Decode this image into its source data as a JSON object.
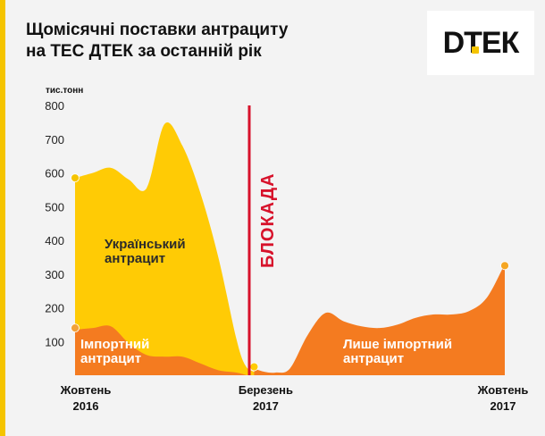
{
  "header": {
    "title_line1": "Щомісячні поставки антрациту",
    "title_line2": "на ТЕС ДТЕК за останній рік"
  },
  "logo": {
    "text": "DТЕК"
  },
  "colors": {
    "background": "#f3f3f3",
    "accent_bar": "#f5c400",
    "ukrainian_series": "#ffcb05",
    "import_series": "#f47b20",
    "import_only_series": "#f47b20",
    "blockade_line": "#d7122b",
    "label_dark": "#2b2b2b",
    "label_light": "#ffffff"
  },
  "chart_data": {
    "type": "area",
    "title": "Щомісячні поставки антрациту на ТЕС ДТЕК за останній рік",
    "ylabel": "тис.тонн",
    "ylim": [
      0,
      800
    ],
    "yticks": [
      "100",
      "200",
      "300",
      "400",
      "500",
      "600",
      "700",
      "800"
    ],
    "xticks": [
      {
        "month": 0,
        "line1": "Жовтень",
        "line2": "2016"
      },
      {
        "month": 5,
        "line1": "Березень",
        "line2": "2017"
      },
      {
        "month": 12,
        "line1": "Жовтень",
        "line2": "2017"
      }
    ],
    "grid": false,
    "series": [
      {
        "name": "Український антрацит",
        "x": [
          0,
          0.5,
          1,
          1.5,
          2,
          2.5,
          3,
          3.5,
          4,
          4.5,
          4.75,
          5,
          5.25
        ],
        "values": [
          585,
          600,
          615,
          580,
          555,
          745,
          680,
          540,
          350,
          110,
          30,
          10,
          0
        ]
      },
      {
        "name": "Імпортний антрацит",
        "x": [
          0,
          0.5,
          1,
          1.5,
          2,
          2.5,
          3,
          3.5,
          4,
          4.5,
          4.8
        ],
        "values": [
          135,
          140,
          145,
          95,
          60,
          55,
          55,
          35,
          15,
          8,
          0
        ]
      },
      {
        "name": "Лише імпортний антрацит",
        "x": [
          5,
          5.3,
          5.6,
          6,
          6.5,
          7,
          7.5,
          8,
          8.5,
          9,
          9.5,
          10,
          10.5,
          11,
          11.5,
          12
        ],
        "values": [
          20,
          10,
          8,
          20,
          120,
          185,
          160,
          145,
          140,
          150,
          170,
          180,
          180,
          190,
          230,
          330
        ]
      }
    ],
    "markers": [
      {
        "series": "Український антрацит",
        "x": 0,
        "y": 585
      },
      {
        "series": "Імпортний антрацит",
        "x": 0,
        "y": 140
      },
      {
        "series": "Лише імпортний антрацит",
        "x": 5,
        "y": 25
      },
      {
        "series": "Лише імпортний антрацит",
        "x": 12,
        "y": 325
      }
    ],
    "annotations": [
      {
        "kind": "vertical-line",
        "x": 4.85,
        "label": "БЛОКАДА"
      }
    ],
    "series_labels": [
      {
        "series": "Український антрацит",
        "line1": "Український",
        "line2": "антрацит"
      },
      {
        "series": "Імпортний антрацит",
        "line1": "Імпортний",
        "line2": "антрацит"
      },
      {
        "series": "Лише імпортний антрацит",
        "line1": "Лише імпортний",
        "line2": "антрацит"
      }
    ]
  }
}
